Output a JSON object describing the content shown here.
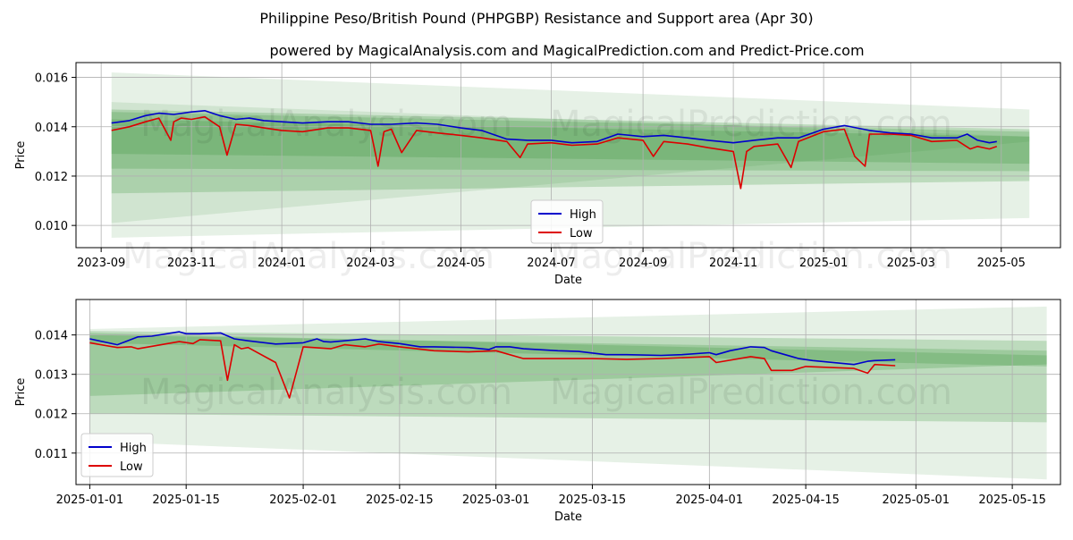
{
  "title": "Philippine Peso/British Pound (PHPGBP) Resistance and Support area (Apr 30)",
  "subtitle": "powered by MagicalAnalysis.com and MagicalPrediction.com and Predict-Price.com",
  "watermarks": [
    "MagicalAnalysis.com",
    "MagicalPrediction.com"
  ],
  "colors": {
    "high": "#0000cc",
    "low": "#dd0000",
    "band": "#2e8b2e",
    "grid": "#b0b0b0"
  },
  "chart_data": [
    {
      "type": "line",
      "xlabel": "Date",
      "ylabel": "Price",
      "x_axis": "date",
      "xlim": [
        "2023-08-15",
        "2025-06-10"
      ],
      "ylim": [
        0.0091,
        0.0166
      ],
      "grid": true,
      "legend": "center",
      "x_ticks": [
        "2023-09",
        "2023-11",
        "2024-01",
        "2024-03",
        "2024-05",
        "2024-07",
        "2024-09",
        "2024-11",
        "2025-01",
        "2025-03",
        "2025-05"
      ],
      "x_tick_dates": [
        "2023-09-01",
        "2023-11-01",
        "2024-01-01",
        "2024-03-01",
        "2024-05-01",
        "2024-07-01",
        "2024-09-01",
        "2024-11-01",
        "2025-01-01",
        "2025-03-01",
        "2025-05-01"
      ],
      "y_ticks": [
        "0.010",
        "0.012",
        "0.014",
        "0.016"
      ],
      "y_tick_values": [
        0.01,
        0.012,
        0.014,
        0.016
      ],
      "bands": [
        {
          "start": "2023-09-08",
          "end": "2025-05-20",
          "top": [
            0.0162,
            0.0147
          ],
          "bottom": [
            0.0095,
            0.0103
          ],
          "opacity": 0.12
        },
        {
          "start": "2023-09-08",
          "end": "2025-05-20",
          "top": [
            0.015,
            0.0136
          ],
          "bottom": [
            0.0101,
            0.0134
          ],
          "opacity": 0.12
        },
        {
          "start": "2023-09-08",
          "end": "2025-05-20",
          "top": [
            0.0147,
            0.0139
          ],
          "bottom": [
            0.0113,
            0.0118
          ],
          "opacity": 0.22
        },
        {
          "start": "2023-09-08",
          "end": "2025-05-20",
          "top": [
            0.0143,
            0.0136
          ],
          "bottom": [
            0.0123,
            0.0122
          ],
          "opacity": 0.22
        },
        {
          "start": "2023-09-08",
          "end": "2025-05-20",
          "top": [
            0.0146,
            0.0138
          ],
          "bottom": [
            0.0129,
            0.0125
          ],
          "opacity": 0.22
        }
      ],
      "series": [
        {
          "name": "High",
          "x": [
            "2023-09-08",
            "2023-09-20",
            "2023-10-01",
            "2023-10-10",
            "2023-10-20",
            "2023-11-01",
            "2023-11-10",
            "2023-11-20",
            "2023-12-01",
            "2023-12-10",
            "2023-12-20",
            "2024-01-01",
            "2024-01-15",
            "2024-02-01",
            "2024-02-15",
            "2024-03-01",
            "2024-03-15",
            "2024-04-01",
            "2024-04-15",
            "2024-05-01",
            "2024-05-15",
            "2024-06-01",
            "2024-06-15",
            "2024-07-01",
            "2024-07-15",
            "2024-08-01",
            "2024-08-15",
            "2024-09-01",
            "2024-09-15",
            "2024-10-01",
            "2024-10-15",
            "2024-11-01",
            "2024-11-15",
            "2024-12-01",
            "2024-12-15",
            "2025-01-01",
            "2025-01-15",
            "2025-02-01",
            "2025-02-15",
            "2025-03-01",
            "2025-03-15",
            "2025-04-01",
            "2025-04-08",
            "2025-04-15",
            "2025-04-23",
            "2025-04-28"
          ],
          "y": [
            0.01415,
            0.01425,
            0.01445,
            0.01455,
            0.0145,
            0.0146,
            0.01465,
            0.01445,
            0.0143,
            0.01435,
            0.01425,
            0.0142,
            0.01415,
            0.0142,
            0.0142,
            0.0141,
            0.0141,
            0.01415,
            0.0141,
            0.01395,
            0.01385,
            0.0135,
            0.01345,
            0.01345,
            0.01335,
            0.0134,
            0.0137,
            0.0136,
            0.01365,
            0.01355,
            0.01345,
            0.01335,
            0.01345,
            0.01355,
            0.01355,
            0.0139,
            0.01405,
            0.01385,
            0.01375,
            0.0137,
            0.01355,
            0.01355,
            0.0137,
            0.01345,
            0.01335,
            0.0134
          ]
        },
        {
          "name": "Low",
          "x": [
            "2023-09-08",
            "2023-09-20",
            "2023-10-01",
            "2023-10-10",
            "2023-10-18",
            "2023-10-20",
            "2023-10-25",
            "2023-11-01",
            "2023-11-10",
            "2023-11-20",
            "2023-11-25",
            "2023-12-01",
            "2023-12-10",
            "2023-12-20",
            "2024-01-01",
            "2024-01-15",
            "2024-02-01",
            "2024-02-15",
            "2024-03-01",
            "2024-03-06",
            "2024-03-10",
            "2024-03-15",
            "2024-03-22",
            "2024-04-01",
            "2024-04-15",
            "2024-05-01",
            "2024-05-15",
            "2024-06-01",
            "2024-06-10",
            "2024-06-15",
            "2024-07-01",
            "2024-07-15",
            "2024-08-01",
            "2024-08-15",
            "2024-09-01",
            "2024-09-08",
            "2024-09-15",
            "2024-10-01",
            "2024-10-15",
            "2024-11-01",
            "2024-11-06",
            "2024-11-10",
            "2024-11-15",
            "2024-12-01",
            "2024-12-10",
            "2024-12-15",
            "2025-01-01",
            "2025-01-15",
            "2025-01-22",
            "2025-01-29",
            "2025-02-01",
            "2025-02-15",
            "2025-03-01",
            "2025-03-15",
            "2025-04-01",
            "2025-04-10",
            "2025-04-15",
            "2025-04-23",
            "2025-04-28"
          ],
          "y": [
            0.01385,
            0.014,
            0.0142,
            0.01435,
            0.01345,
            0.0142,
            0.01435,
            0.0143,
            0.0144,
            0.014,
            0.01285,
            0.0141,
            0.01405,
            0.01395,
            0.01385,
            0.0138,
            0.01395,
            0.01395,
            0.01385,
            0.0124,
            0.0138,
            0.0139,
            0.01295,
            0.01385,
            0.01375,
            0.01365,
            0.01355,
            0.0134,
            0.01275,
            0.0133,
            0.01335,
            0.01325,
            0.0133,
            0.01355,
            0.01345,
            0.0128,
            0.0134,
            0.0133,
            0.01315,
            0.013,
            0.0115,
            0.013,
            0.0132,
            0.0133,
            0.01235,
            0.0134,
            0.0138,
            0.0139,
            0.0128,
            0.0124,
            0.0137,
            0.0137,
            0.01365,
            0.0134,
            0.01345,
            0.0131,
            0.0132,
            0.0131,
            0.0132
          ]
        }
      ]
    },
    {
      "type": "line",
      "xlabel": "Date",
      "ylabel": "Price",
      "x_axis": "date",
      "xlim": [
        "2024-12-30",
        "2025-05-22"
      ],
      "ylim": [
        0.0102,
        0.0149
      ],
      "grid": true,
      "legend": "lower-left",
      "x_ticks": [
        "2025-01-01",
        "2025-01-15",
        "2025-02-01",
        "2025-02-15",
        "2025-03-01",
        "2025-03-15",
        "2025-04-01",
        "2025-04-15",
        "2025-05-01",
        "2025-05-15"
      ],
      "y_ticks": [
        "0.011",
        "0.012",
        "0.013",
        "0.014"
      ],
      "y_tick_values": [
        0.011,
        0.012,
        0.013,
        0.014
      ],
      "bands": [
        {
          "start": "2025-01-01",
          "end": "2025-05-20",
          "top": [
            0.01415,
            0.01472
          ],
          "bottom": [
            0.0113,
            0.01033
          ],
          "opacity": 0.12
        },
        {
          "start": "2025-01-01",
          "end": "2025-05-20",
          "top": [
            0.0141,
            0.01385
          ],
          "bottom": [
            0.012,
            0.01178
          ],
          "opacity": 0.22
        },
        {
          "start": "2025-01-01",
          "end": "2025-05-20",
          "top": [
            0.01405,
            0.01348
          ],
          "bottom": [
            0.01245,
            0.01325
          ],
          "opacity": 0.22
        },
        {
          "start": "2025-01-01",
          "end": "2025-05-20",
          "top": [
            0.014,
            0.0136
          ],
          "bottom": [
            0.0138,
            0.0132
          ],
          "opacity": 0.22
        }
      ],
      "series": [
        {
          "name": "High",
          "x": [
            "2025-01-01",
            "2025-01-05",
            "2025-01-08",
            "2025-01-10",
            "2025-01-14",
            "2025-01-15",
            "2025-01-17",
            "2025-01-20",
            "2025-01-22",
            "2025-01-24",
            "2025-01-28",
            "2025-02-01",
            "2025-02-03",
            "2025-02-04",
            "2025-02-05",
            "2025-02-10",
            "2025-02-12",
            "2025-02-15",
            "2025-02-18",
            "2025-02-20",
            "2025-02-25",
            "2025-02-28",
            "2025-03-01",
            "2025-03-03",
            "2025-03-05",
            "2025-03-10",
            "2025-03-13",
            "2025-03-17",
            "2025-03-20",
            "2025-03-25",
            "2025-03-28",
            "2025-04-01",
            "2025-04-02",
            "2025-04-04",
            "2025-04-07",
            "2025-04-09",
            "2025-04-10",
            "2025-04-14",
            "2025-04-16",
            "2025-04-22",
            "2025-04-24",
            "2025-04-25",
            "2025-04-28"
          ],
          "y": [
            0.0139,
            0.01375,
            0.01395,
            0.01397,
            0.01408,
            0.01403,
            0.01403,
            0.01405,
            0.0139,
            0.01385,
            0.01377,
            0.0138,
            0.0139,
            0.01383,
            0.01382,
            0.0139,
            0.01383,
            0.01378,
            0.0137,
            0.0137,
            0.01368,
            0.01363,
            0.0137,
            0.0137,
            0.01365,
            0.0136,
            0.01358,
            0.0135,
            0.0135,
            0.01348,
            0.0135,
            0.01355,
            0.0135,
            0.0136,
            0.0137,
            0.01368,
            0.0136,
            0.0134,
            0.01335,
            0.01325,
            0.01333,
            0.01335,
            0.01337
          ]
        },
        {
          "name": "Low",
          "x": [
            "2025-01-01",
            "2025-01-05",
            "2025-01-07",
            "2025-01-08",
            "2025-01-14",
            "2025-01-16",
            "2025-01-17",
            "2025-01-20",
            "2025-01-21",
            "2025-01-22",
            "2025-01-23",
            "2025-01-24",
            "2025-01-28",
            "2025-01-30",
            "2025-02-01",
            "2025-02-05",
            "2025-02-07",
            "2025-02-10",
            "2025-02-12",
            "2025-02-15",
            "2025-02-20",
            "2025-02-25",
            "2025-03-01",
            "2025-03-05",
            "2025-03-10",
            "2025-03-15",
            "2025-03-20",
            "2025-03-25",
            "2025-04-01",
            "2025-04-02",
            "2025-04-07",
            "2025-04-09",
            "2025-04-10",
            "2025-04-13",
            "2025-04-15",
            "2025-04-22",
            "2025-04-24",
            "2025-04-25",
            "2025-04-28"
          ],
          "y": [
            0.0138,
            0.01368,
            0.0137,
            0.01365,
            0.01383,
            0.01378,
            0.01388,
            0.01385,
            0.01285,
            0.01375,
            0.01365,
            0.01368,
            0.0133,
            0.0124,
            0.0137,
            0.01365,
            0.01375,
            0.0137,
            0.01377,
            0.0137,
            0.0136,
            0.01357,
            0.0136,
            0.0134,
            0.0134,
            0.0134,
            0.01338,
            0.0134,
            0.01345,
            0.0133,
            0.01345,
            0.0134,
            0.0131,
            0.0131,
            0.0132,
            0.01315,
            0.01303,
            0.01325,
            0.01322
          ]
        }
      ]
    }
  ]
}
